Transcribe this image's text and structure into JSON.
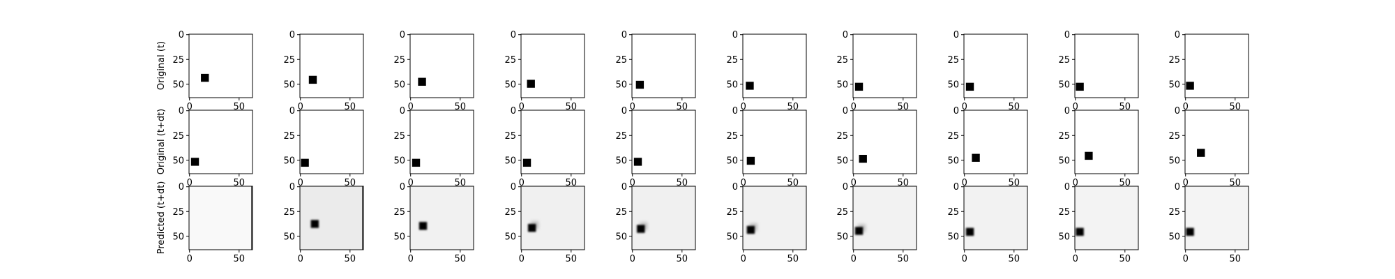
{
  "row_labels": [
    "Original (t)",
    "Original (t+dt)",
    "Predicted (t+dt)"
  ],
  "chart_data": {
    "type": "heatmap",
    "description": "3x10 grid of 64x64 image panels (imshow). Axis ticks 0, 25, 50 on y (inverted) and 0, 50 on x.",
    "image_size": [
      64,
      64
    ],
    "xticks": [
      0,
      50
    ],
    "yticks": [
      0,
      25,
      50
    ],
    "xlim": [
      0,
      63
    ],
    "ylim": [
      63,
      0
    ],
    "square_size": 8,
    "rows": [
      {
        "name": "Original (t)",
        "panels": [
          {
            "cx": 16,
            "cy": 44
          },
          {
            "cx": 13,
            "cy": 46
          },
          {
            "cx": 12,
            "cy": 48
          },
          {
            "cx": 10,
            "cy": 50
          },
          {
            "cx": 8,
            "cy": 51
          },
          {
            "cx": 7,
            "cy": 52
          },
          {
            "cx": 6,
            "cy": 53
          },
          {
            "cx": 6,
            "cy": 53
          },
          {
            "cx": 5,
            "cy": 53
          },
          {
            "cx": 5,
            "cy": 52
          }
        ]
      },
      {
        "name": "Original (t+dt)",
        "panels": [
          {
            "cx": 6,
            "cy": 52
          },
          {
            "cx": 5,
            "cy": 53
          },
          {
            "cx": 6,
            "cy": 53
          },
          {
            "cx": 6,
            "cy": 53
          },
          {
            "cx": 6,
            "cy": 52
          },
          {
            "cx": 8,
            "cy": 51
          },
          {
            "cx": 10,
            "cy": 49
          },
          {
            "cx": 12,
            "cy": 48
          },
          {
            "cx": 14,
            "cy": 46
          },
          {
            "cx": 16,
            "cy": 43
          }
        ]
      },
      {
        "name": "Predicted (t+dt)",
        "panels": [
          {
            "cx": null,
            "cy": null,
            "bg": "#f9f9f9",
            "right_edge": true
          },
          {
            "cx": 15,
            "cy": 38,
            "bg": "#ebebeb",
            "right_edge": true
          },
          {
            "cx": 13,
            "cy": 40,
            "bg": "#f1f1f1"
          },
          {
            "cx": 11,
            "cy": 42,
            "bg": "#f0f0f0",
            "smear": true
          },
          {
            "cx": 9,
            "cy": 43,
            "bg": "#f0f0f0",
            "smear": true
          },
          {
            "cx": 8,
            "cy": 44,
            "bg": "#f1f1f1",
            "smear": true
          },
          {
            "cx": 6,
            "cy": 45,
            "bg": "#f2f2f2",
            "smear": true
          },
          {
            "cx": 6,
            "cy": 46,
            "bg": "#f2f2f2"
          },
          {
            "cx": 5,
            "cy": 46,
            "bg": "#f3f3f3"
          },
          {
            "cx": 5,
            "cy": 46,
            "bg": "#f4f4f4"
          }
        ]
      }
    ]
  }
}
